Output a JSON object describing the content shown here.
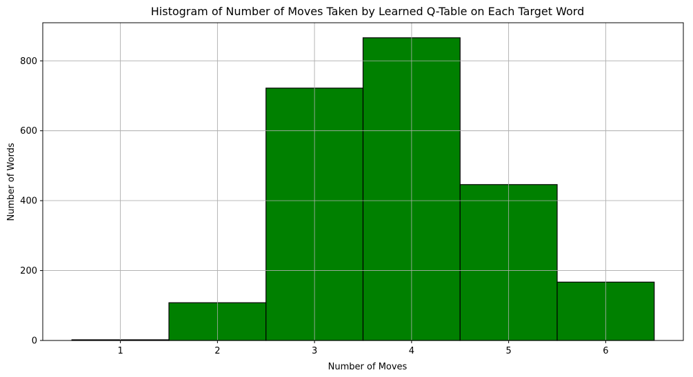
{
  "chart_data": {
    "type": "bar",
    "title": "Histogram of Number of Moves Taken by Learned Q-Table on Each Target Word",
    "xlabel": "Number of Moves",
    "ylabel": "Number of Words",
    "categories": [
      1,
      2,
      3,
      4,
      5,
      6
    ],
    "values": [
      2,
      108,
      722,
      866,
      446,
      167
    ],
    "bar_width": 1,
    "xlim": [
      0.2,
      6.8
    ],
    "ylim": [
      0,
      909
    ],
    "xticks": [
      1,
      2,
      3,
      4,
      5,
      6
    ],
    "yticks": [
      0,
      200,
      400,
      600,
      800
    ],
    "grid": true,
    "bar_color": "#008000",
    "edge_color": "#000000"
  }
}
